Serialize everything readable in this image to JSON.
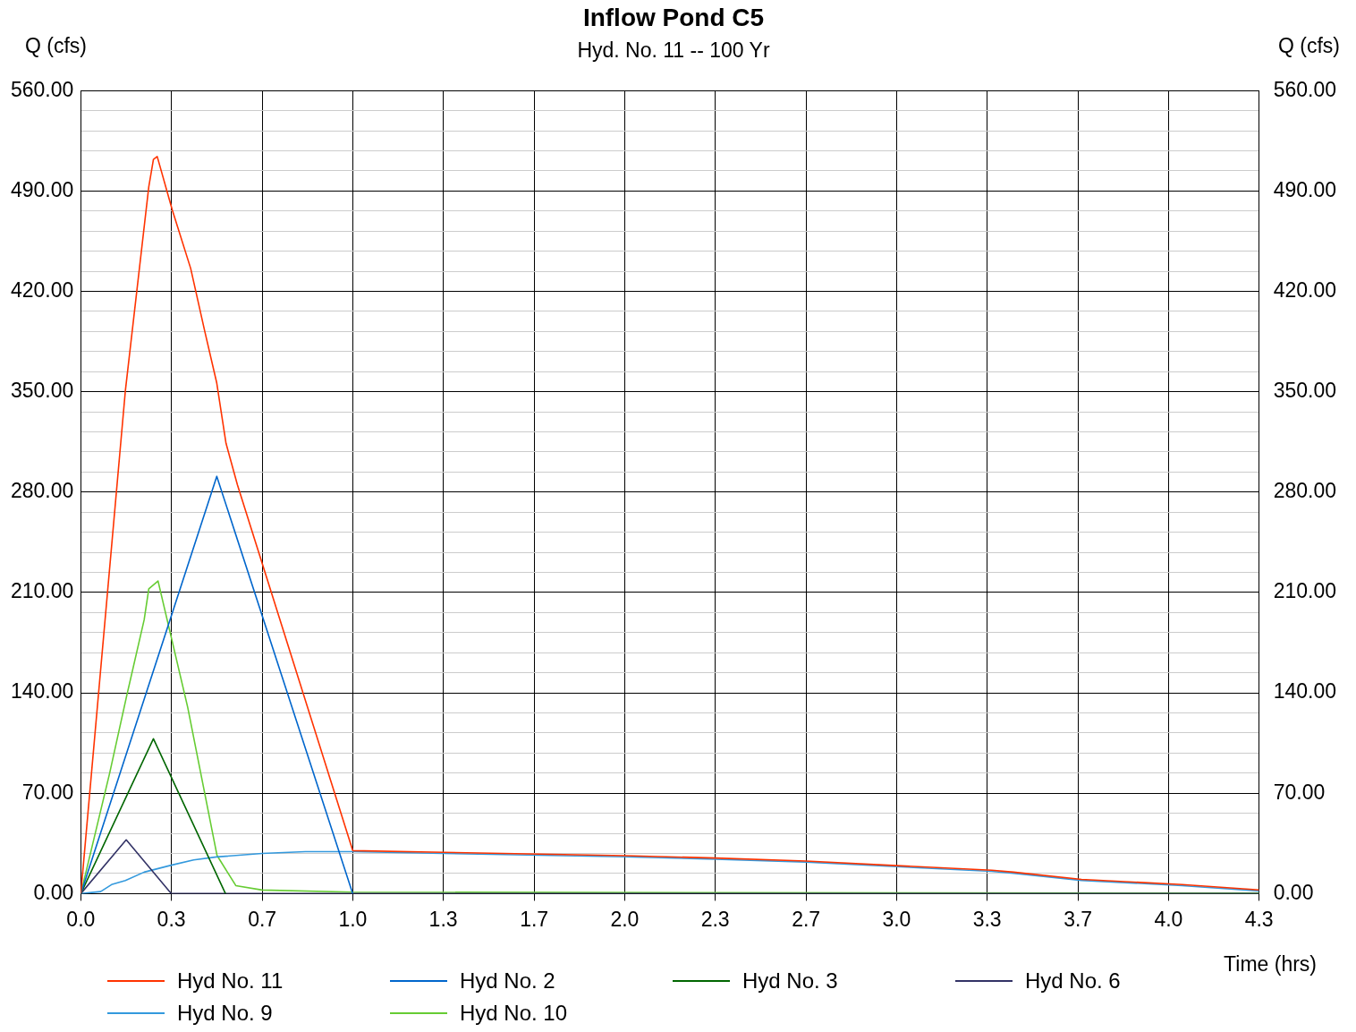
{
  "chart_data": {
    "type": "line",
    "title": "Inflow Pond C5",
    "subtitle": "Hyd. No. 11 -- 100 Yr",
    "xlabel": "Time (hrs)",
    "ylabel": "Q (cfs)",
    "y2label": "Q (cfs)",
    "xlim": [
      0,
      4.333
    ],
    "xticks": [
      {
        "value": 0,
        "label": "0.0"
      },
      {
        "value": 0.333,
        "label": "0.3"
      },
      {
        "value": 0.667,
        "label": "0.7"
      },
      {
        "value": 1,
        "label": "1.0"
      },
      {
        "value": 1.333,
        "label": "1.3"
      },
      {
        "value": 1.667,
        "label": "1.7"
      },
      {
        "value": 2,
        "label": "2.0"
      },
      {
        "value": 2.333,
        "label": "2.3"
      },
      {
        "value": 2.667,
        "label": "2.7"
      },
      {
        "value": 3,
        "label": "3.0"
      },
      {
        "value": 3.333,
        "label": "3.3"
      },
      {
        "value": 3.667,
        "label": "3.7"
      },
      {
        "value": 4,
        "label": "4.0"
      },
      {
        "value": 4.333,
        "label": "4.3"
      }
    ],
    "ylim": [
      0,
      560
    ],
    "yticks": [
      {
        "value": 0,
        "label": "0.00"
      },
      {
        "value": 14,
        "label": null
      },
      {
        "value": 28,
        "label": null
      },
      {
        "value": 42,
        "label": null
      },
      {
        "value": 56,
        "label": null
      },
      {
        "value": 70,
        "label": "70.00"
      },
      {
        "value": 84,
        "label": null
      },
      {
        "value": 98,
        "label": null
      },
      {
        "value": 112,
        "label": null
      },
      {
        "value": 126,
        "label": null
      },
      {
        "value": 140,
        "label": "140.00"
      },
      {
        "value": 154,
        "label": null
      },
      {
        "value": 168,
        "label": null
      },
      {
        "value": 182,
        "label": null
      },
      {
        "value": 196,
        "label": null
      },
      {
        "value": 210,
        "label": "210.00"
      },
      {
        "value": 224,
        "label": null
      },
      {
        "value": 238,
        "label": null
      },
      {
        "value": 252,
        "label": null
      },
      {
        "value": 266,
        "label": null
      },
      {
        "value": 280,
        "label": "280.00"
      },
      {
        "value": 294,
        "label": null
      },
      {
        "value": 308,
        "label": null
      },
      {
        "value": 322,
        "label": null
      },
      {
        "value": 336,
        "label": null
      },
      {
        "value": 350,
        "label": "350.00"
      },
      {
        "value": 364,
        "label": null
      },
      {
        "value": 378,
        "label": null
      },
      {
        "value": 392,
        "label": null
      },
      {
        "value": 406,
        "label": null
      },
      {
        "value": 420,
        "label": "420.00"
      },
      {
        "value": 434,
        "label": null
      },
      {
        "value": 448,
        "label": null
      },
      {
        "value": 462,
        "label": null
      },
      {
        "value": 476,
        "label": null
      },
      {
        "value": 490,
        "label": "490.00"
      },
      {
        "value": 504,
        "label": null
      },
      {
        "value": 518,
        "label": null
      },
      {
        "value": 532,
        "label": null
      },
      {
        "value": 546,
        "label": null
      },
      {
        "value": 560,
        "label": "560.00"
      }
    ],
    "y2lim": [
      0,
      560
    ],
    "y2ticks": [
      {
        "value": 0,
        "label": "0.00"
      },
      {
        "value": 70,
        "label": "70.00"
      },
      {
        "value": 140,
        "label": "140.00"
      },
      {
        "value": 210,
        "label": "210.00"
      },
      {
        "value": 280,
        "label": "280.00"
      },
      {
        "value": 350,
        "label": "350.00"
      },
      {
        "value": 420,
        "label": "420.00"
      },
      {
        "value": 490,
        "label": "490.00"
      },
      {
        "value": 560,
        "label": "560.00"
      }
    ],
    "grid": true,
    "legend": "bottom",
    "series": [
      {
        "name": "Hyd No. 11",
        "color": "#ff3300",
        "x": [
          0,
          0.164,
          0.25,
          0.267,
          0.281,
          0.336,
          0.404,
          0.456,
          0.5,
          0.534,
          0.576,
          1.0,
          1.333,
          2.0,
          2.333,
          2.667,
          3.0,
          3.35,
          3.43,
          3.68,
          4.05,
          4.333
        ],
        "values": [
          0,
          351,
          493,
          512,
          514,
          477,
          436,
          392,
          356,
          314,
          285,
          30,
          28.8,
          26.5,
          24.8,
          22.7,
          19.5,
          16.3,
          15,
          9.9,
          6.3,
          2.6
        ]
      },
      {
        "name": "Hyd No. 2",
        "color": "#0066cc",
        "x": [
          0,
          0.5,
          1.0
        ],
        "values": [
          0,
          291,
          0
        ]
      },
      {
        "name": "Hyd No. 3",
        "color": "#006600",
        "x": [
          0,
          0.267,
          0.532
        ],
        "values": [
          0,
          108,
          0
        ]
      },
      {
        "name": "Hyd No. 6",
        "color": "#333366",
        "x": [
          0,
          0.167,
          0.333,
          4.333
        ],
        "values": [
          0,
          37.5,
          0,
          0
        ]
      },
      {
        "name": "Hyd No. 9",
        "color": "#3399dd",
        "x": [
          0,
          0.073,
          0.113,
          0.164,
          0.233,
          0.336,
          0.415,
          0.5,
          0.667,
          0.826,
          1.0,
          1.333,
          2.0,
          2.333,
          2.667,
          3.0,
          3.35,
          3.43,
          3.68,
          4.05,
          4.333
        ],
        "values": [
          0,
          1.4,
          6.3,
          9.2,
          15,
          20,
          23.5,
          25.6,
          28,
          29.3,
          29.3,
          28,
          25.7,
          24,
          22,
          18.8,
          15.5,
          14.2,
          9.2,
          5.6,
          1.9
        ]
      },
      {
        "name": "Hyd No. 10",
        "color": "#66cc33",
        "x": [
          0,
          0.106,
          0.17,
          0.233,
          0.25,
          0.284,
          0.393,
          0.501,
          0.57,
          0.667,
          1.0,
          4.333
        ],
        "values": [
          0,
          84,
          139,
          191,
          212.6,
          218,
          130,
          26.6,
          5.6,
          2.5,
          1,
          0.3
        ]
      }
    ]
  }
}
